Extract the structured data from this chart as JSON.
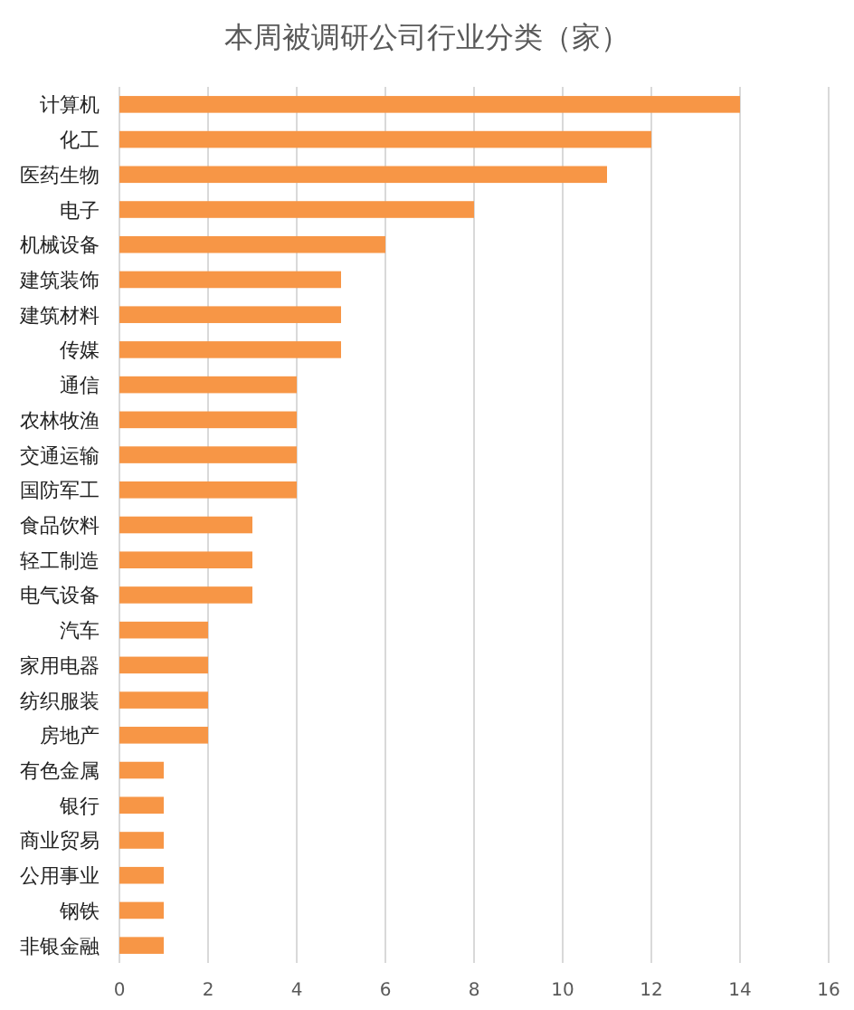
{
  "chart_data": {
    "type": "bar",
    "orientation": "horizontal",
    "title": "本周被调研公司行业分类（家）",
    "categories": [
      "计算机",
      "化工",
      "医药生物",
      "电子",
      "机械设备",
      "建筑装饰",
      "建筑材料",
      "传媒",
      "通信",
      "农林牧渔",
      "交通运输",
      "国防军工",
      "食品饮料",
      "轻工制造",
      "电气设备",
      "汽车",
      "家用电器",
      "纺织服装",
      "房地产",
      "有色金属",
      "银行",
      "商业贸易",
      "公用事业",
      "钢铁",
      "非银金融"
    ],
    "values": [
      14,
      12,
      11,
      8,
      6,
      5,
      5,
      5,
      4,
      4,
      4,
      4,
      3,
      3,
      3,
      2,
      2,
      2,
      2,
      1,
      1,
      1,
      1,
      1,
      1
    ],
    "color": "#f79646",
    "xlim": [
      0,
      16
    ],
    "xticks": [
      0,
      2,
      4,
      6,
      8,
      10,
      12,
      14,
      16
    ],
    "grid": "x"
  }
}
